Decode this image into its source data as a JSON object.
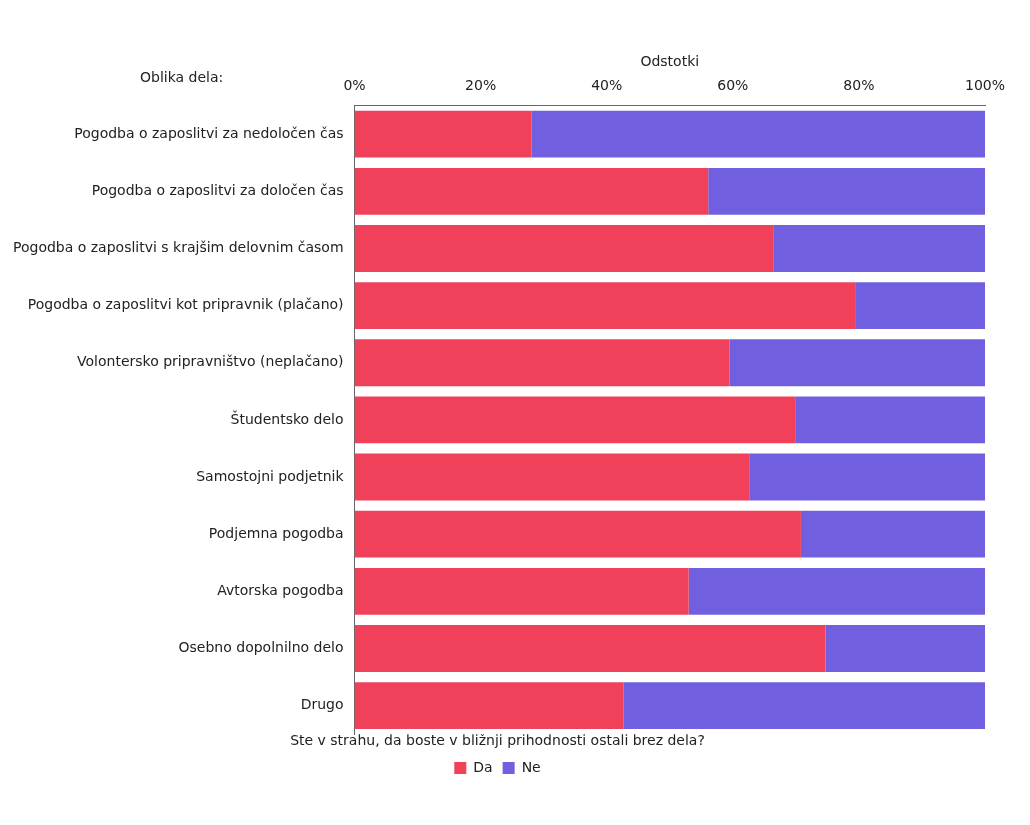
{
  "chart_data": {
    "type": "bar",
    "orientation": "horizontal",
    "stacked": true,
    "xlabel": "Odstotki",
    "ylabel": "Oblika dela:",
    "legend_title": "Ste v strahu, da boste v bližnji prihodnosti ostali brez dela?",
    "legend": "bottom",
    "grid": false,
    "categories": [
      "Pogodba o zaposlitvi za nedoločen čas",
      "Pogodba o zaposlitvi za določen čas",
      "Pogodba o zaposlitvi s krajšim delovnim časom",
      "Pogodba o zaposlitvi kot pripravnik (plačano)",
      "Volontersko pripravništvo (neplačano)",
      "Študentsko delo",
      "Samostojni podjetnik",
      "Podjemna pogodba",
      "Avtorska pogodba",
      "Osebno dopolnilno delo",
      "Drugo"
    ],
    "xlim": [
      0,
      100
    ],
    "xticks": [
      {
        "value": 0,
        "label": "0%"
      },
      {
        "value": 20,
        "label": "20%"
      },
      {
        "value": 40,
        "label": "40%"
      },
      {
        "value": 60,
        "label": "60%"
      },
      {
        "value": 80,
        "label": "80%"
      },
      {
        "value": 100,
        "label": "100%"
      }
    ],
    "series": [
      {
        "name": "Da",
        "color": "#f0405a",
        "values": [
          28.1,
          56.1,
          66.4,
          79.4,
          59.5,
          70.0,
          62.6,
          70.8,
          53.0,
          74.7,
          42.7
        ]
      },
      {
        "name": "Ne",
        "color": "#7060e0",
        "values": [
          71.9,
          43.9,
          33.6,
          20.6,
          40.5,
          30.0,
          37.4,
          29.2,
          47.0,
          25.3,
          57.3
        ]
      }
    ]
  }
}
